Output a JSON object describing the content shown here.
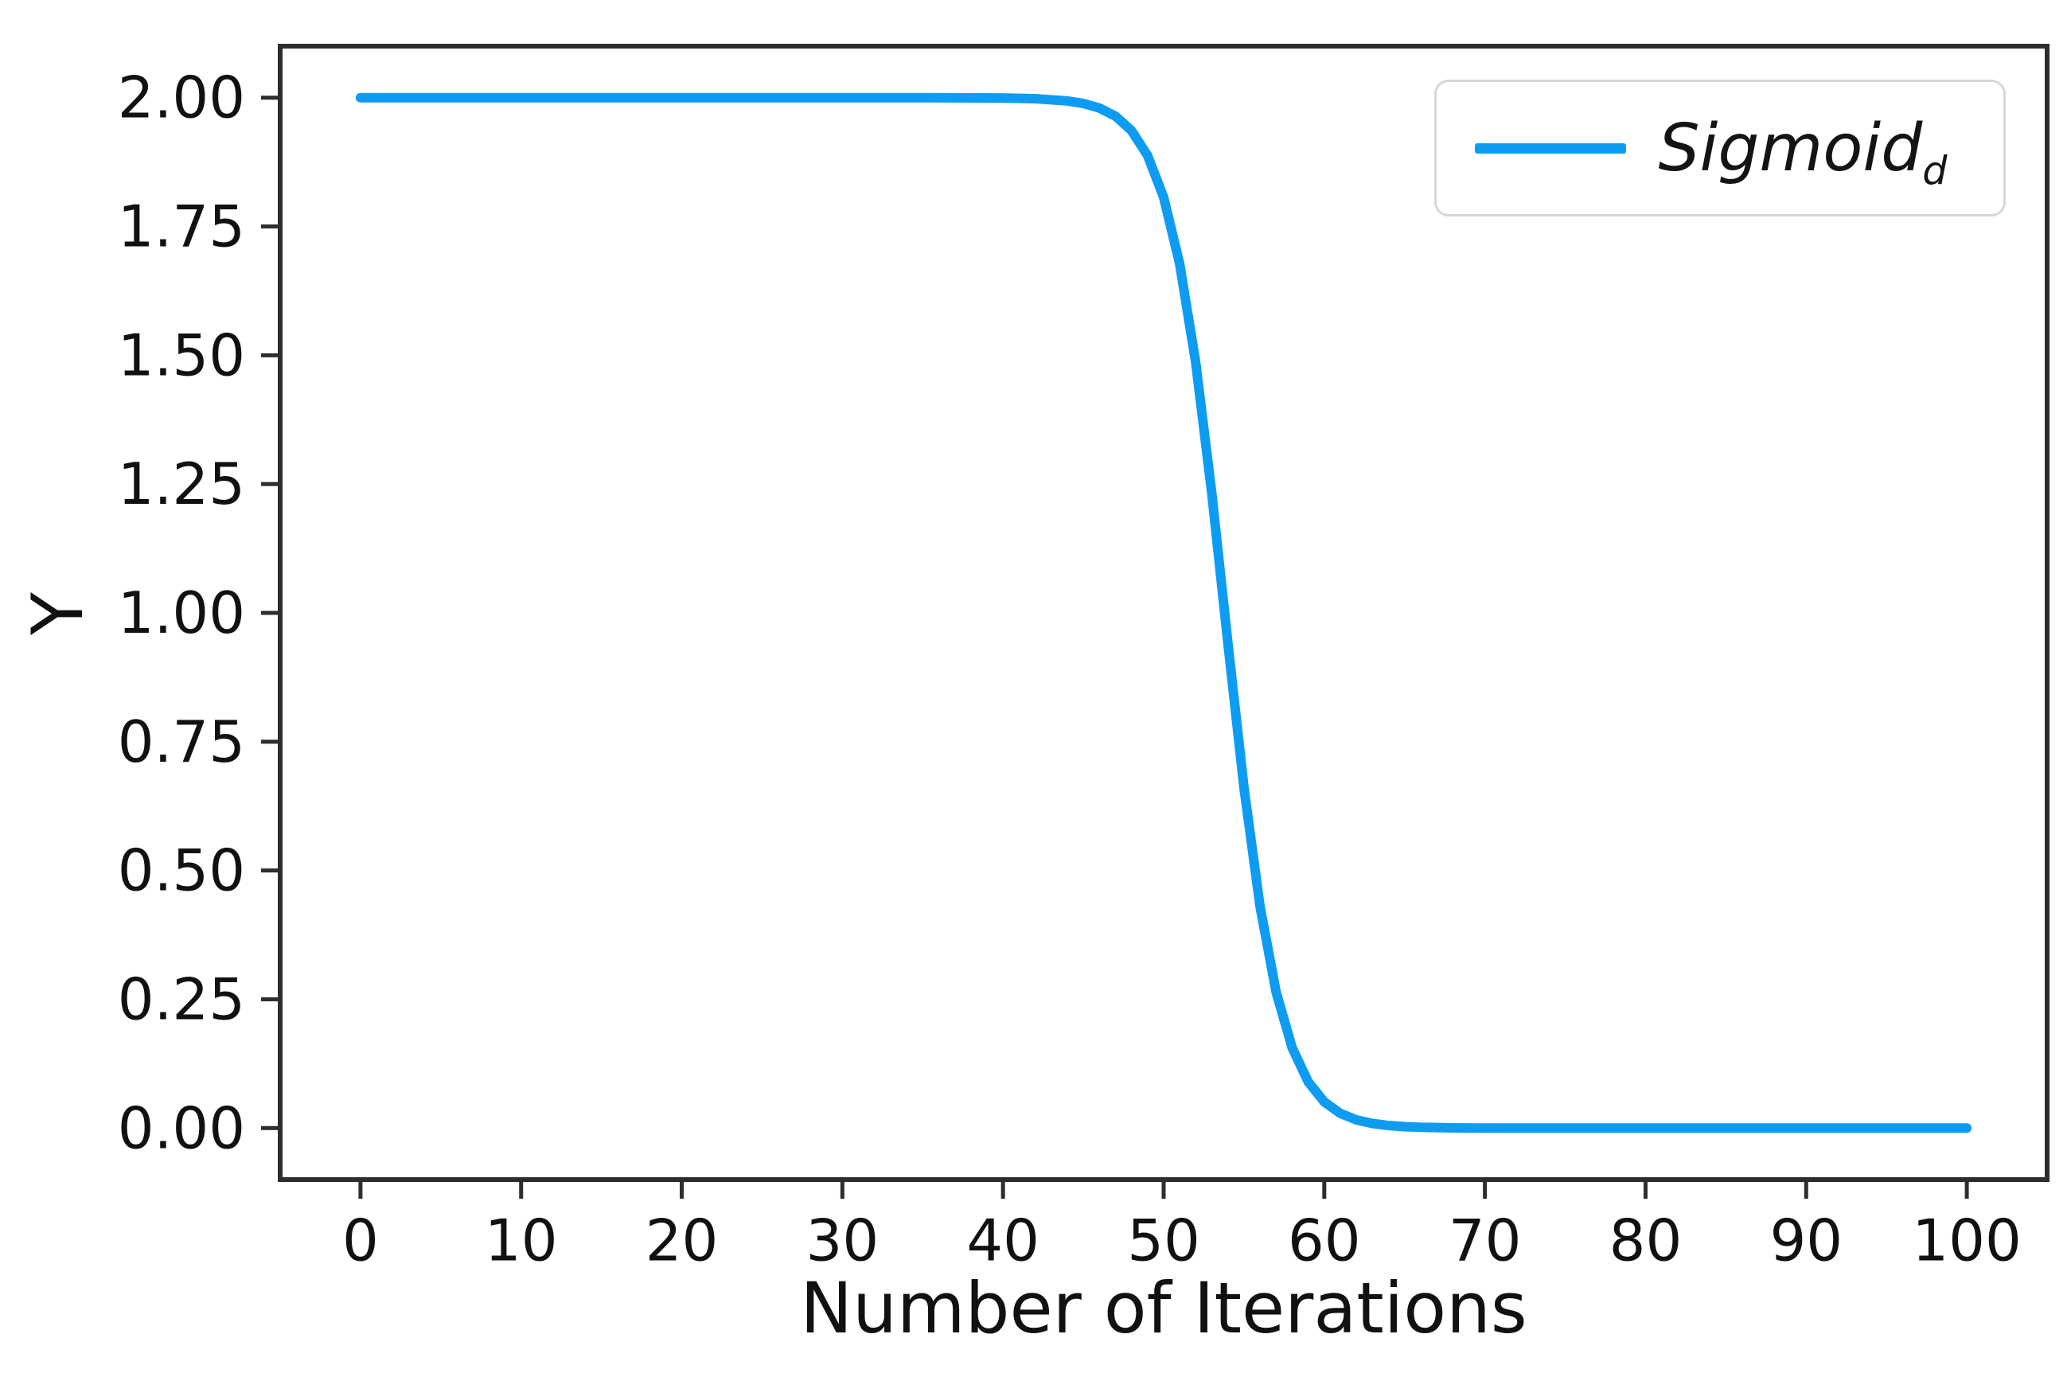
{
  "figure": {
    "background": "#ffffff"
  },
  "chart_data": {
    "type": "line",
    "title": "",
    "xlabel": "Number of Iterations",
    "ylabel": "Y",
    "xlim": [
      -5,
      105
    ],
    "ylim": [
      -0.1,
      2.1
    ],
    "grid": false,
    "axis_color": "#2d2d2d",
    "tick_label_color": "#111111",
    "x_ticks": [
      {
        "value": 0,
        "label": "0"
      },
      {
        "value": 10,
        "label": "10"
      },
      {
        "value": 20,
        "label": "20"
      },
      {
        "value": 30,
        "label": "30"
      },
      {
        "value": 40,
        "label": "40"
      },
      {
        "value": 50,
        "label": "50"
      },
      {
        "value": 60,
        "label": "60"
      },
      {
        "value": 70,
        "label": "70"
      },
      {
        "value": 80,
        "label": "80"
      },
      {
        "value": 90,
        "label": "90"
      },
      {
        "value": 100,
        "label": "100"
      }
    ],
    "y_ticks": [
      {
        "value": 0.0,
        "label": "0.00"
      },
      {
        "value": 0.25,
        "label": "0.25"
      },
      {
        "value": 0.5,
        "label": "0.50"
      },
      {
        "value": 0.75,
        "label": "0.75"
      },
      {
        "value": 1.0,
        "label": "1.00"
      },
      {
        "value": 1.25,
        "label": "1.25"
      },
      {
        "value": 1.5,
        "label": "1.50"
      },
      {
        "value": 1.75,
        "label": "1.75"
      },
      {
        "value": 2.0,
        "label": "2.00"
      }
    ],
    "legend": {
      "position": "upper right",
      "entries": [
        {
          "label": "Sigmoid",
          "label_subscript": "d",
          "color": "#0d9cf2"
        }
      ]
    },
    "series": [
      {
        "name": "Sigmoid_d",
        "color": "#0d9cf2",
        "x": [
          0,
          5,
          10,
          15,
          20,
          25,
          30,
          35,
          40,
          42,
          44,
          45,
          46,
          47,
          48,
          49,
          50,
          51,
          52,
          53,
          54,
          55,
          56,
          57,
          58,
          59,
          60,
          61,
          62,
          63,
          64,
          65,
          66,
          68,
          70,
          75,
          80,
          85,
          90,
          95,
          100
        ],
        "y": [
          2.0,
          2.0,
          2.0,
          2.0,
          2.0,
          2.0,
          2.0,
          1.9999,
          1.9994,
          1.998,
          1.9937,
          1.9888,
          1.9799,
          1.9641,
          1.9361,
          1.8877,
          1.8067,
          1.677,
          1.485,
          1.2311,
          0.9413,
          0.661,
          0.4303,
          0.2642,
          0.1559,
          0.0897,
          0.0508,
          0.0285,
          0.0159,
          0.0089,
          0.005,
          0.0028,
          0.0015,
          0.0005,
          0.0001,
          0.0,
          0.0,
          0.0,
          0.0,
          0.0,
          0.0
        ]
      }
    ]
  }
}
